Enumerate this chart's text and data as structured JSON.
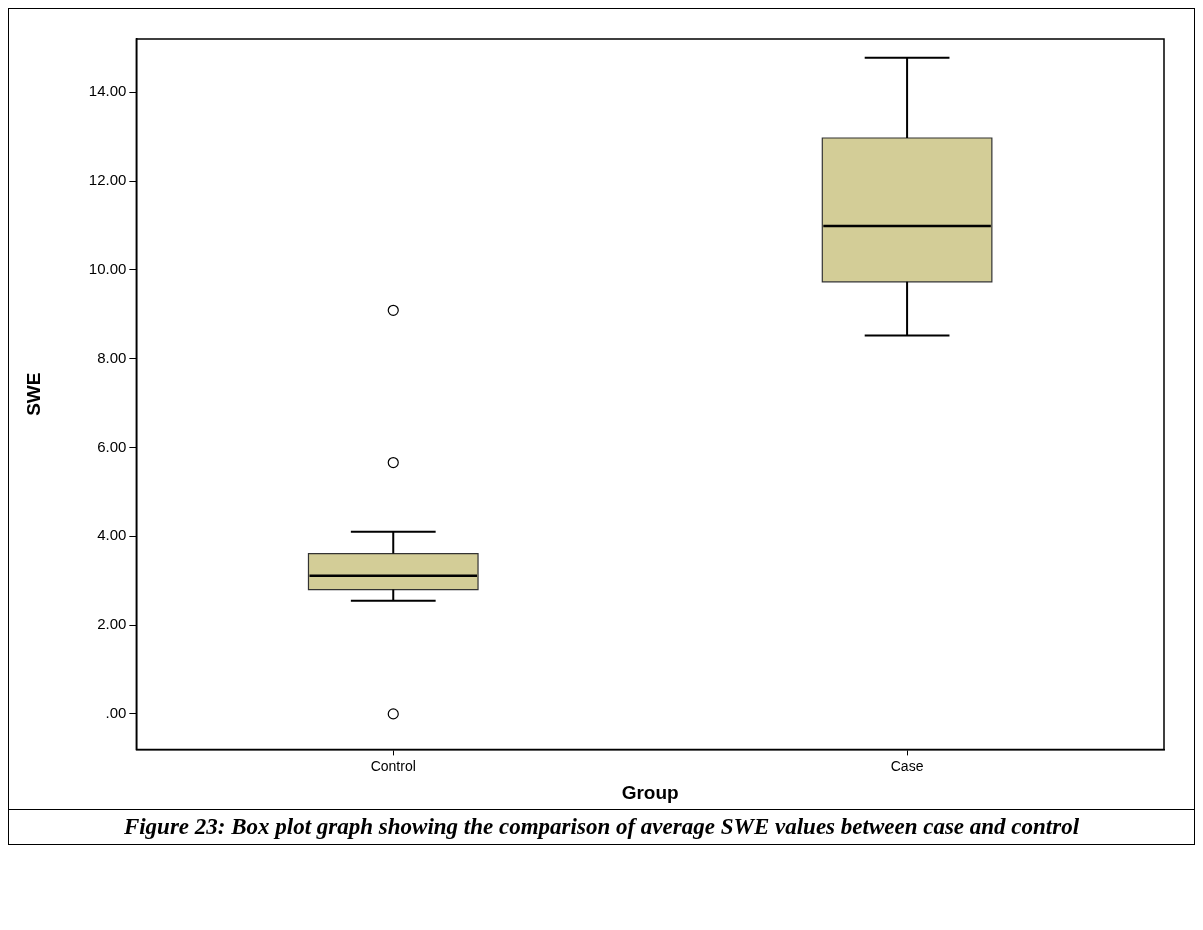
{
  "chart_data": {
    "type": "box",
    "xlabel": "Group",
    "ylabel": "SWE",
    "categories": [
      "Control",
      "Case"
    ],
    "color": "#d3cd97",
    "ylim": [
      -0.8,
      15.2
    ],
    "yticks": [
      {
        "value": 0,
        "label": ".00"
      },
      {
        "value": 2,
        "label": "2.00"
      },
      {
        "value": 4,
        "label": "4.00"
      },
      {
        "value": 6,
        "label": "6.00"
      },
      {
        "value": 8,
        "label": "8.00"
      },
      {
        "value": 10,
        "label": "10.00"
      },
      {
        "value": 12,
        "label": "12.00"
      },
      {
        "value": 14,
        "label": "14.00"
      }
    ],
    "grid": false,
    "legend": false,
    "boxes": [
      {
        "low": 2.55,
        "q1": 2.8,
        "median": 3.11,
        "q3": 3.61,
        "high": 4.1,
        "outliers": [
          0,
          5.66,
          9.09
        ]
      },
      {
        "low": 8.52,
        "q1": 9.73,
        "median": 10.99,
        "q3": 12.97,
        "high": 14.78
      }
    ],
    "annotations": [
      "Figure 23: Box plot graph showing the comparison of average SWE values between case and control"
    ]
  }
}
